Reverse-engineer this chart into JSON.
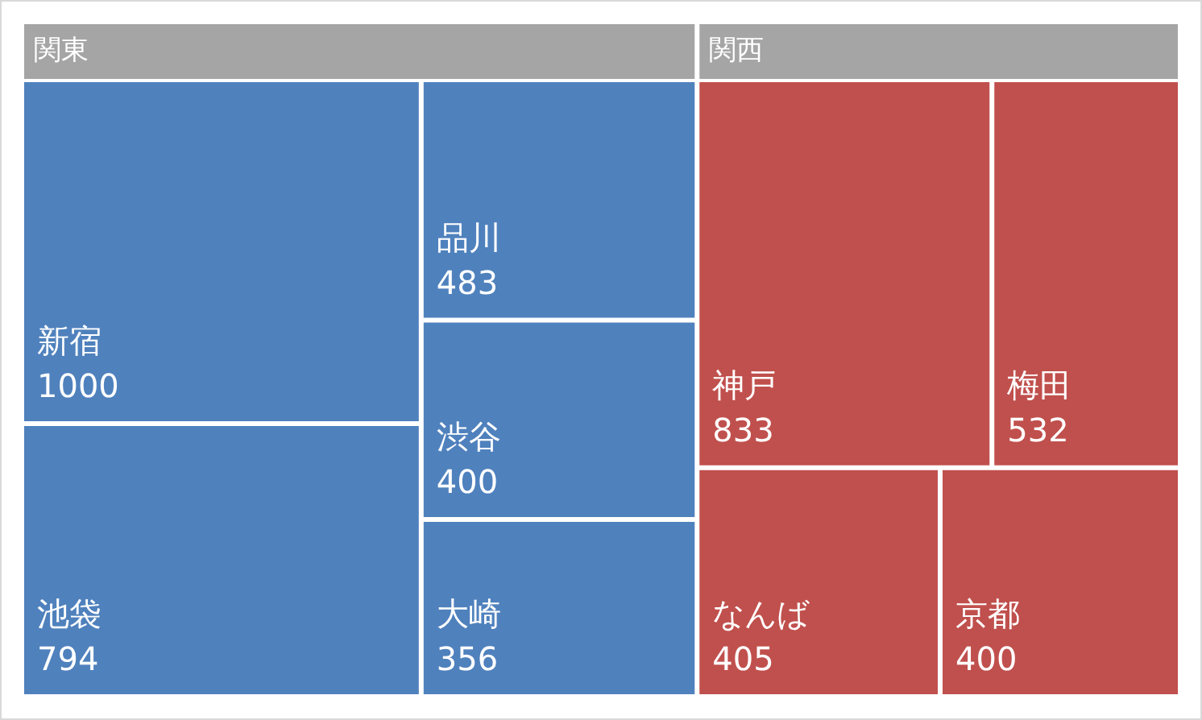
{
  "chart_data": {
    "type": "other",
    "data_labels": true,
    "categories": [
      "新宿",
      "池袋",
      "品川",
      "渋谷",
      "大崎",
      "神戸",
      "梅田",
      "なんば",
      "京都"
    ],
    "values": [
      1000,
      794,
      483,
      400,
      356,
      833,
      532,
      405,
      400
    ],
    "colors": [
      "#4f81bd",
      "#4f81bd",
      "#4f81bd",
      "#4f81bd",
      "#4f81bd",
      "#c0504d",
      "#c0504d",
      "#c0504d",
      "#c0504d"
    ],
    "annotations": [
      "関東",
      "関西"
    ]
  }
}
